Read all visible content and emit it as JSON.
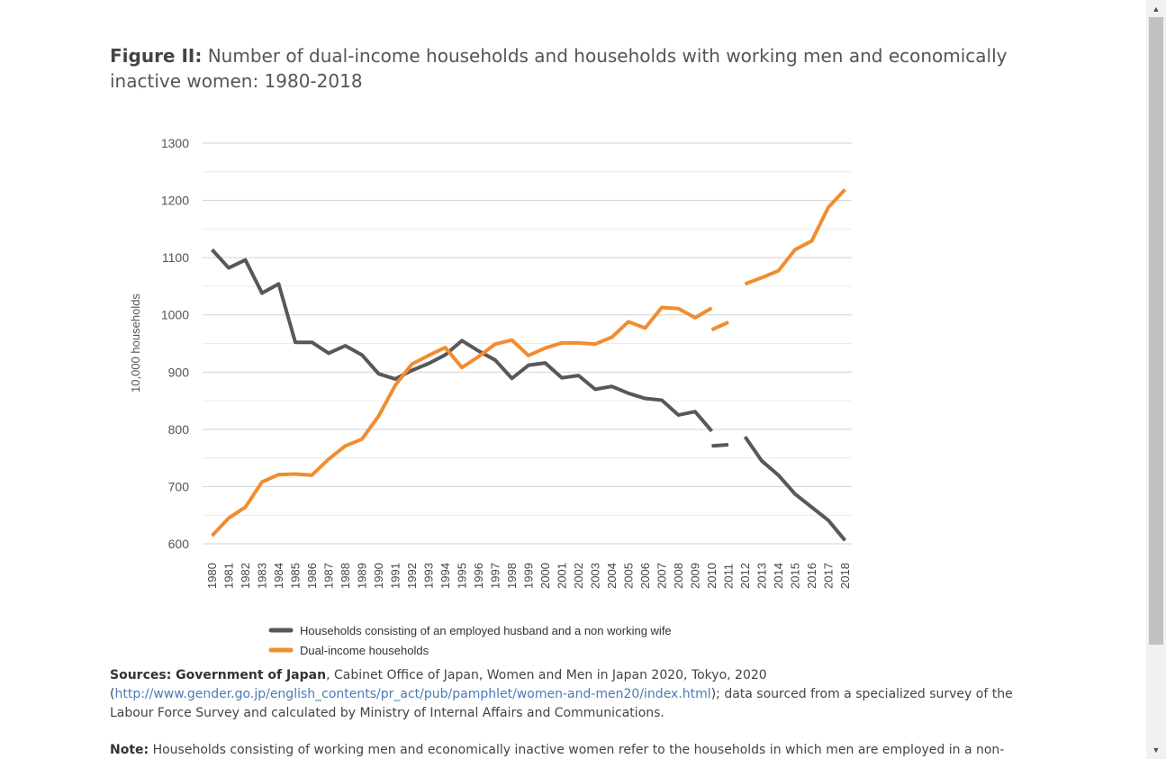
{
  "title": {
    "lead": "Figure II:",
    "text": "Number of dual-income households and households with working men and economically inactive women: 1980-2018"
  },
  "chart_data": {
    "type": "line",
    "ylabel": "10,000 households",
    "xlabel": "",
    "ylim": [
      600,
      1300
    ],
    "yticks": [
      "600",
      "700",
      "800",
      "900",
      "1000",
      "1100",
      "1200",
      "1300"
    ],
    "grid": "horizontal",
    "legend_position": "bottom",
    "x": [
      "1980",
      "1981",
      "1982",
      "1983",
      "1984",
      "1985",
      "1986",
      "1987",
      "1988",
      "1989",
      "1990",
      "1991",
      "1992",
      "1993",
      "1994",
      "1995",
      "1996",
      "1997",
      "1998",
      "1999",
      "2000",
      "2001",
      "2002",
      "2003",
      "2004",
      "2005",
      "2006",
      "2007",
      "2008",
      "2009",
      "2010",
      "2011",
      "2012",
      "2013",
      "2014",
      "2015",
      "2016",
      "2017",
      "2018"
    ],
    "series": [
      {
        "name": "Households consisting of an employed husband and a non working wife",
        "color": "#5b5757",
        "segments": [
          {
            "x_start": 0,
            "values": [
              1114,
              1082,
              1096,
              1038,
              1054,
              952,
              952,
              933,
              946,
              930,
              897,
              888,
              903,
              915,
              930,
              955,
              937,
              921,
              889,
              912,
              916,
              890,
              894,
              870,
              875,
              863,
              854,
              851,
              825,
              831,
              797
            ]
          },
          {
            "x_start": 30,
            "values": [
              771,
              773
            ]
          },
          {
            "x_start": 32,
            "values": [
              787,
              745,
              720,
              687,
              664,
              641,
              606
            ]
          }
        ]
      },
      {
        "name": "Dual-income households",
        "color": "#f28c30",
        "segments": [
          {
            "x_start": 0,
            "values": [
              614,
              645,
              664,
              708,
              721,
              722,
              720,
              748,
              771,
              783,
              823,
              877,
              914,
              929,
              943,
              908,
              927,
              949,
              956,
              929,
              942,
              951,
              951,
              949,
              961,
              988,
              977,
              1013,
              1011,
              995,
              1012
            ]
          },
          {
            "x_start": 30,
            "values": [
              974,
              987
            ]
          },
          {
            "x_start": 32,
            "values": [
              1054,
              1065,
              1077,
              1114,
              1129,
              1188,
              1219
            ]
          }
        ]
      }
    ]
  },
  "sources": {
    "label": "Sources: Government of Japan",
    "text1": ", Cabinet Office of Japan, Women and Men in Japan 2020, Tokyo, 2020",
    "open_paren": "(",
    "link": "http://www.gender.go.jp/english_contents/pr_act/pub/pamphlet/women-and-men20/index.html",
    "text2": "); data sourced from a specialized survey of the Labour Force Survey and calculated by Ministry of Internal Affairs and Communications."
  },
  "note": {
    "label": "Note:",
    "text": " Households consisting of working men and economically inactive women refer to the households in which men are employed in a non-"
  }
}
